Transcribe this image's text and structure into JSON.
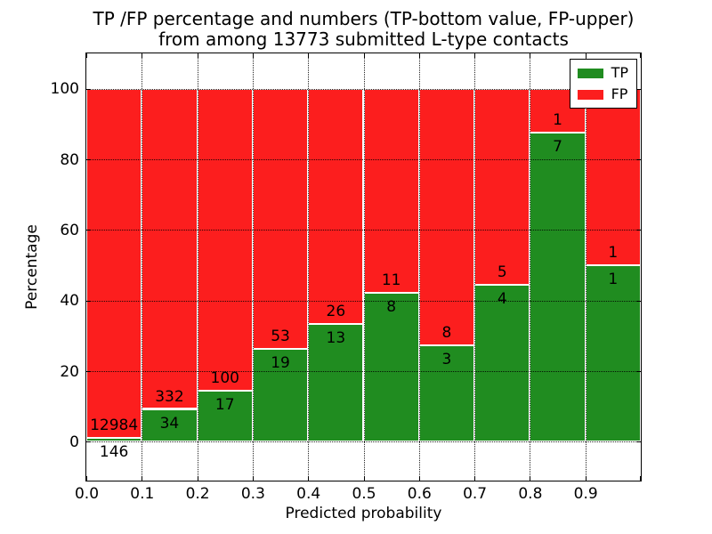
{
  "chart_data": {
    "type": "bar",
    "subtype": "stacked-percentage-histogram",
    "title": "TP /FP percentage and numbers (TP-bottom value, FP-upper) from among 13773 submitted L-type contacts",
    "title_line1": "TP /FP percentage and numbers (TP-bottom value, FP-upper)",
    "title_line2": "from among 13773 submitted L-type contacts",
    "xlabel": "Predicted probability",
    "ylabel": "Percentage",
    "total_contacts": 13773,
    "categories": [
      "0.0-0.1",
      "0.1-0.2",
      "0.2-0.3",
      "0.3-0.4",
      "0.4-0.5",
      "0.5-0.6",
      "0.6-0.7",
      "0.7-0.8",
      "0.8-0.9",
      "0.9-1.0"
    ],
    "series": [
      {
        "name": "TP",
        "color": "#208c20",
        "counts": [
          146,
          34,
          17,
          19,
          13,
          8,
          3,
          4,
          7,
          1
        ]
      },
      {
        "name": "FP",
        "color": "#fc1e1e",
        "counts": [
          12984,
          332,
          100,
          53,
          26,
          11,
          8,
          5,
          1,
          1
        ]
      }
    ],
    "tp_percent": [
      1.11,
      9.29,
      14.53,
      26.39,
      33.33,
      42.11,
      27.27,
      44.44,
      87.5,
      50.0
    ],
    "x_tick_labels": [
      "0.0",
      "0.1",
      "0.2",
      "0.3",
      "0.4",
      "0.5",
      "0.6",
      "0.7",
      "0.8",
      "0.9"
    ],
    "y_tick_values": [
      0,
      20,
      40,
      60,
      80,
      100
    ],
    "xlim": [
      0.0,
      1.0
    ],
    "ylim": [
      -11,
      110
    ],
    "grid": "dotted",
    "legend": {
      "position": "upper-right",
      "items": [
        {
          "label": "TP",
          "color": "#208c20"
        },
        {
          "label": "FP",
          "color": "#fc1e1e"
        }
      ]
    }
  }
}
